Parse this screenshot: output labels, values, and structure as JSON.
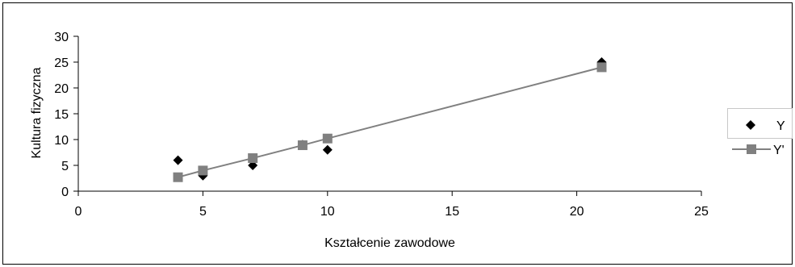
{
  "chart_data": {
    "type": "scatter",
    "title": "",
    "xlabel": "Kształcenie zawodowe",
    "ylabel": "Kultura fizyczna",
    "xlim": [
      0,
      25
    ],
    "ylim": [
      0,
      30
    ],
    "x_ticks": [
      0,
      5,
      10,
      15,
      20,
      25
    ],
    "y_ticks": [
      0,
      5,
      10,
      15,
      20,
      25,
      30
    ],
    "grid": false,
    "legend_position": "right",
    "series": [
      {
        "name": "Y",
        "marker": "diamond",
        "color": "#000000",
        "line": false,
        "points": [
          {
            "x": 4,
            "y": 6
          },
          {
            "x": 5,
            "y": 3
          },
          {
            "x": 7,
            "y": 5
          },
          {
            "x": 9,
            "y": 9
          },
          {
            "x": 10,
            "y": 8
          },
          {
            "x": 21,
            "y": 25
          }
        ]
      },
      {
        "name": "Y'",
        "marker": "square",
        "color": "#808080",
        "line": true,
        "points": [
          {
            "x": 4,
            "y": 2.7
          },
          {
            "x": 5,
            "y": 4
          },
          {
            "x": 7,
            "y": 6.4
          },
          {
            "x": 9,
            "y": 8.9
          },
          {
            "x": 10,
            "y": 10.2
          },
          {
            "x": 21,
            "y": 24
          }
        ]
      }
    ]
  }
}
